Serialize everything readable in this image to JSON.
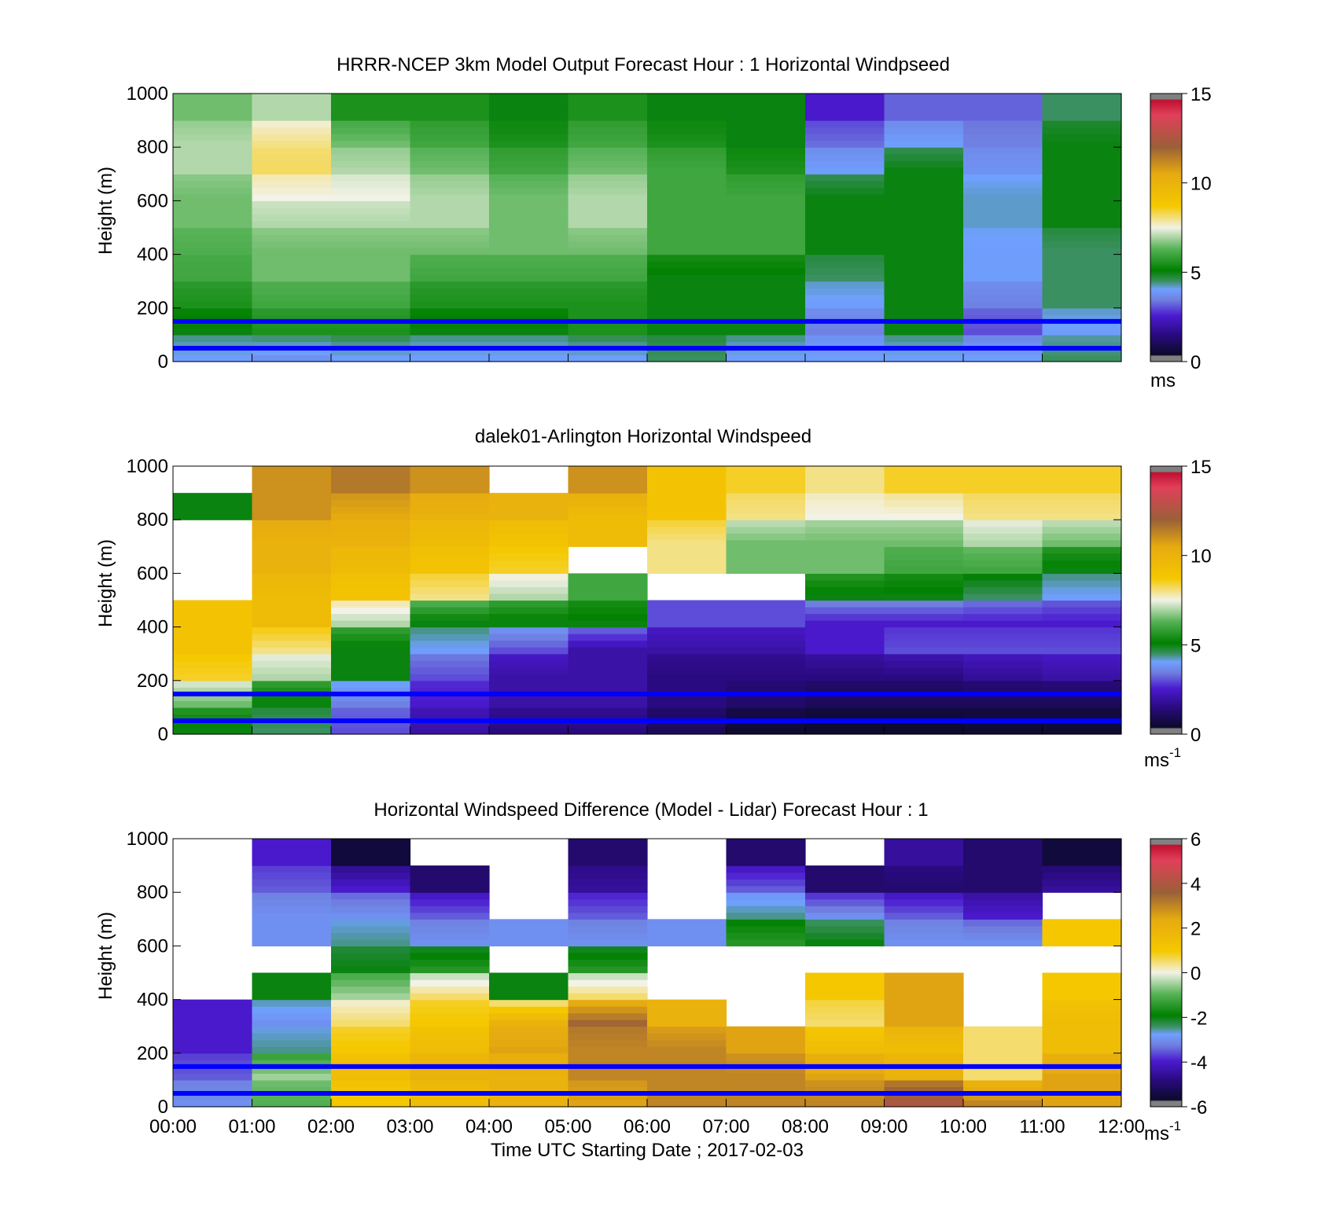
{
  "figure": {
    "xlabel": "Time UTC  Starting Date ; 2017-02-03",
    "x_ticks": [
      "00:00",
      "01:00",
      "02:00",
      "03:00",
      "04:00",
      "05:00",
      "06:00",
      "07:00",
      "08:00",
      "09:00",
      "10:00",
      "11:00",
      "12:00"
    ]
  },
  "chart_data": [
    {
      "type": "heatmap",
      "title": "HRRR-NCEP 3km Model Output   Forecast Hour : 1 Horizontal Windpseed",
      "ylabel": "Height (m)",
      "xlim": [
        0,
        12
      ],
      "ylim": [
        0,
        1000
      ],
      "y_ticks": [
        "0",
        "200",
        "400",
        "600",
        "800",
        "1000"
      ],
      "grid": false,
      "reference_lines_m": [
        50,
        150
      ],
      "reference_line_color": "#0000ff",
      "colorbar": {
        "min": 0,
        "max": 15,
        "ticks": [
          "0",
          "5",
          "10",
          "15"
        ],
        "unit": "ms",
        "unit_sup": ""
      },
      "x_hours": [
        0,
        1,
        2,
        3,
        4,
        5,
        6,
        7,
        8,
        9,
        10,
        11
      ],
      "heights_m": [
        0,
        100,
        200,
        300,
        400,
        500,
        600,
        700,
        800,
        900
      ],
      "values": [
        [
          4,
          3.8,
          4,
          4,
          4,
          4,
          4.5,
          4,
          4,
          4,
          4,
          4.5
        ],
        [
          5,
          5.5,
          5.5,
          5,
          5,
          5.5,
          5,
          5,
          3.5,
          5,
          3,
          4
        ],
        [
          5.5,
          6,
          6,
          5.5,
          5.5,
          5.5,
          5,
          5,
          4,
          5,
          3.5,
          4.5
        ],
        [
          6,
          6.5,
          6.5,
          6,
          6,
          6,
          5,
          5,
          4.5,
          5,
          4,
          4.5
        ],
        [
          6.2,
          6.5,
          6.5,
          6.5,
          6.5,
          6.5,
          6,
          6,
          5,
          5,
          4,
          4.5
        ],
        [
          6.5,
          7,
          7,
          7,
          6.5,
          7,
          6,
          6,
          5,
          5,
          4.2,
          5
        ],
        [
          6.5,
          7.5,
          7.5,
          7,
          6.5,
          7,
          6,
          6,
          5,
          5,
          4.2,
          5
        ],
        [
          7,
          8.2,
          7,
          6.5,
          6,
          6.5,
          6,
          5.5,
          4,
          5,
          3.8,
          5
        ],
        [
          7,
          8,
          6.5,
          6,
          5.5,
          6,
          5.5,
          5,
          3.3,
          4,
          3.5,
          5
        ],
        [
          6.5,
          7,
          5.5,
          5.5,
          5,
          5.5,
          5,
          5,
          2.5,
          3.2,
          3.2,
          4.5
        ]
      ]
    },
    {
      "type": "heatmap",
      "title": "dalek01-Arlington  Horizontal Windspeed",
      "ylabel": "Height (m)",
      "xlim": [
        0,
        12
      ],
      "ylim": [
        0,
        1000
      ],
      "y_ticks": [
        "0",
        "200",
        "400",
        "600",
        "800",
        "1000"
      ],
      "grid": false,
      "reference_lines_m": [
        50,
        150
      ],
      "reference_line_color": "#0000ff",
      "colorbar": {
        "min": 0,
        "max": 15,
        "ticks": [
          "0",
          "5",
          "10",
          "15"
        ],
        "unit": "ms",
        "unit_sup": "-1"
      },
      "x_hours": [
        0,
        1,
        2,
        3,
        4,
        5,
        6,
        7,
        8,
        9,
        10,
        11
      ],
      "heights_m": [
        0,
        100,
        200,
        300,
        400,
        500,
        600,
        700,
        800,
        900
      ],
      "values": [
        [
          5,
          4.5,
          3,
          2,
          1.5,
          1.5,
          1,
          0.5,
          0.4,
          0.4,
          0.5,
          0.5
        ],
        [
          6.5,
          5,
          3.5,
          2.5,
          2,
          2,
          1.5,
          1.2,
          1,
          1,
          1,
          1
        ],
        [
          8.5,
          7,
          5,
          3,
          2,
          2,
          1.5,
          1.5,
          1.5,
          1.5,
          1.8,
          2
        ],
        [
          9,
          8,
          5,
          4,
          3,
          2,
          2,
          2,
          2.5,
          3,
          3,
          3
        ],
        [
          9,
          9.5,
          7,
          5,
          5,
          5,
          3,
          3,
          2.5,
          2.5,
          2.5,
          2.5
        ],
        [
          null,
          9.5,
          9,
          8,
          7,
          6,
          null,
          null,
          5,
          5,
          4.5,
          4
        ],
        [
          null,
          10,
          9.5,
          9,
          8.5,
          null,
          8,
          6.5,
          6.5,
          6,
          6,
          5
        ],
        [
          null,
          10,
          10,
          9.5,
          9,
          9.5,
          8,
          6.5,
          6.5,
          6.5,
          7,
          6.5
        ],
        [
          5,
          11,
          10.5,
          10,
          10,
          9.5,
          9,
          8,
          7.5,
          7.5,
          8,
          8
        ],
        [
          null,
          11,
          11.5,
          11,
          null,
          11,
          9,
          8.5,
          8,
          8.5,
          8.5,
          8.5
        ]
      ]
    },
    {
      "type": "heatmap",
      "title": "Horizontal Windspeed Difference (Model - Lidar) Forecast Hour : 1",
      "ylabel": "Height (m)",
      "xlim": [
        0,
        12
      ],
      "ylim": [
        0,
        1000
      ],
      "y_ticks": [
        "0",
        "200",
        "400",
        "600",
        "800",
        "1000"
      ],
      "grid": false,
      "reference_lines_m": [
        50,
        150
      ],
      "reference_line_color": "#0000ff",
      "colorbar": {
        "min": -6,
        "max": 6,
        "ticks": [
          "-6",
          "-4",
          "-2",
          "0",
          "2",
          "4",
          "6"
        ],
        "unit": "ms",
        "unit_sup": "-1"
      },
      "x_hours": [
        0,
        1,
        2,
        3,
        4,
        5,
        6,
        7,
        8,
        9,
        10,
        11
      ],
      "heights_m": [
        0,
        100,
        200,
        300,
        400,
        500,
        600,
        700,
        800,
        900
      ],
      "values": [
        [
          -3,
          -1,
          1,
          1.5,
          2,
          2.5,
          3,
          3,
          3,
          4,
          3,
          2.5
        ],
        [
          -3.5,
          -0.5,
          1.5,
          2,
          2,
          3,
          3,
          3,
          2.5,
          2,
          0.5,
          2.5
        ],
        [
          -4,
          -2.5,
          1,
          1.5,
          2.5,
          3,
          3,
          2.5,
          1.5,
          1.5,
          0.5,
          1.5
        ],
        [
          -4,
          -3,
          0.5,
          1,
          2,
          3.5,
          2,
          null,
          0.5,
          2.5,
          null,
          1.5
        ],
        [
          null,
          -2,
          -0.5,
          0.5,
          -2,
          0.5,
          null,
          null,
          1,
          2.5,
          null,
          1
        ],
        [
          null,
          null,
          -2,
          -1.5,
          null,
          -1.5,
          null,
          null,
          null,
          null,
          null,
          null
        ],
        [
          null,
          -3,
          -2.5,
          -3,
          -3,
          -3,
          -3,
          -1.5,
          -2,
          -3,
          -3,
          1
        ],
        [
          null,
          -3,
          -3,
          -3.5,
          null,
          -3.5,
          null,
          -2.5,
          -3,
          -3.5,
          -4,
          null
        ],
        [
          null,
          -3.5,
          -4,
          -5,
          null,
          -4.5,
          null,
          -3.5,
          -5,
          -5,
          -5,
          -4.5
        ],
        [
          null,
          -4,
          -5.5,
          null,
          null,
          -5,
          null,
          -5,
          null,
          -4.5,
          -5,
          -5.5
        ]
      ]
    }
  ]
}
